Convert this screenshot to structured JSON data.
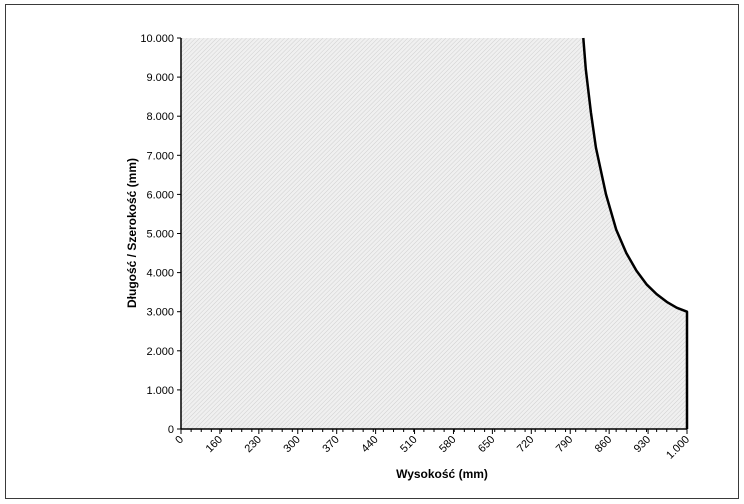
{
  "chart_data": {
    "type": "area",
    "title": "",
    "xlabel": "Wysokość (mm)",
    "ylabel": "Długość / Szerokość (mm)",
    "x_ticks": [
      "0",
      "160",
      "230",
      "300",
      "370",
      "440",
      "510",
      "580",
      "650",
      "720",
      "790",
      "860",
      "930",
      "1.000"
    ],
    "y_ticks": [
      "0",
      "1.000",
      "2.000",
      "3.000",
      "4.000",
      "5.000",
      "6.000",
      "7.000",
      "8.000",
      "9.000",
      "10.000"
    ],
    "xlim": [
      0,
      1000
    ],
    "ylim": [
      0,
      10000
    ],
    "grid": false,
    "fill": "hatched light grey",
    "series": [
      {
        "x": [
          0,
          795,
          800,
          810,
          820,
          840,
          860,
          880,
          900,
          920,
          940,
          960,
          980,
          1000,
          1000
        ],
        "y": [
          10000,
          10000,
          9200,
          8100,
          7200,
          6000,
          5100,
          4500,
          4050,
          3700,
          3450,
          3250,
          3100,
          3000,
          0
        ]
      }
    ]
  }
}
